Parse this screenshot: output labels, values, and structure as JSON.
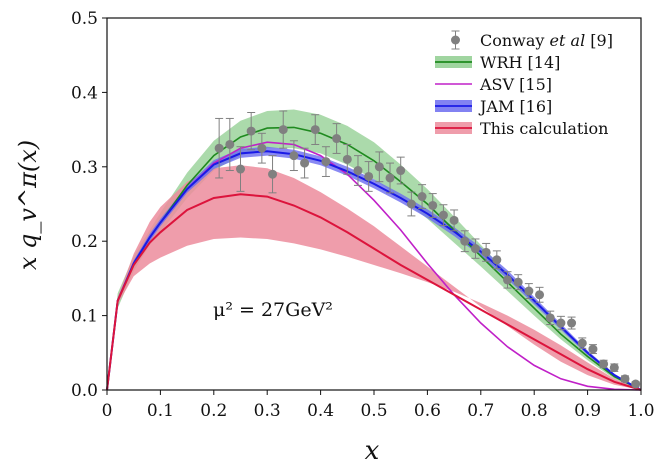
{
  "chart_data": {
    "type": "line",
    "xlabel": "x",
    "ylabel": "x q_v^π(x)",
    "xlim": [
      0,
      1.0
    ],
    "ylim": [
      0,
      0.5
    ],
    "x_ticks": [
      "0",
      "0.1",
      "0.2",
      "0.3",
      "0.4",
      "0.5",
      "0.6",
      "0.7",
      "0.8",
      "0.9",
      "1.0"
    ],
    "y_ticks": [
      "0.0",
      "0.1",
      "0.2",
      "0.3",
      "0.4",
      "0.5"
    ],
    "x_tick_values": [
      0,
      0.1,
      0.2,
      0.3,
      0.4,
      0.5,
      0.6,
      0.7,
      0.8,
      0.9,
      1.0
    ],
    "y_tick_values": [
      0,
      0.1,
      0.2,
      0.3,
      0.4,
      0.5
    ],
    "annotation": "μ² = 27GeV²",
    "legend_position": "top-right",
    "colors": {
      "data": "#808080",
      "wrh": "#1f8a1f",
      "wrh_band": "#8fce8f",
      "asv": "#c020c8",
      "jam": "#1a1ae6",
      "jam_band": "#6c6cf0",
      "calc": "#dc143c",
      "calc_band": "#ec8c9c"
    },
    "legend": [
      {
        "key": "data",
        "label": "Conway ",
        "label_italic": "et al",
        "label_tail": " [9]"
      },
      {
        "key": "wrh",
        "label": "WRH [14]"
      },
      {
        "key": "asv",
        "label": "ASV [15]"
      },
      {
        "key": "jam",
        "label": "JAM [16]"
      },
      {
        "key": "calc",
        "label": "This calculation"
      }
    ],
    "data_points": [
      {
        "x": 0.21,
        "y": 0.325,
        "err": 0.04
      },
      {
        "x": 0.23,
        "y": 0.33,
        "err": 0.035
      },
      {
        "x": 0.25,
        "y": 0.297,
        "err": 0.03
      },
      {
        "x": 0.27,
        "y": 0.348,
        "err": 0.025
      },
      {
        "x": 0.29,
        "y": 0.325,
        "err": 0.02
      },
      {
        "x": 0.31,
        "y": 0.29,
        "err": 0.025
      },
      {
        "x": 0.33,
        "y": 0.35,
        "err": 0.025
      },
      {
        "x": 0.35,
        "y": 0.315,
        "err": 0.02
      },
      {
        "x": 0.37,
        "y": 0.305,
        "err": 0.02
      },
      {
        "x": 0.39,
        "y": 0.35,
        "err": 0.02
      },
      {
        "x": 0.41,
        "y": 0.307,
        "err": 0.02
      },
      {
        "x": 0.43,
        "y": 0.338,
        "err": 0.02
      },
      {
        "x": 0.45,
        "y": 0.31,
        "err": 0.02
      },
      {
        "x": 0.47,
        "y": 0.295,
        "err": 0.02
      },
      {
        "x": 0.49,
        "y": 0.287,
        "err": 0.02
      },
      {
        "x": 0.51,
        "y": 0.3,
        "err": 0.02
      },
      {
        "x": 0.53,
        "y": 0.285,
        "err": 0.02
      },
      {
        "x": 0.55,
        "y": 0.295,
        "err": 0.018
      },
      {
        "x": 0.57,
        "y": 0.25,
        "err": 0.016
      },
      {
        "x": 0.59,
        "y": 0.26,
        "err": 0.016
      },
      {
        "x": 0.61,
        "y": 0.248,
        "err": 0.016
      },
      {
        "x": 0.63,
        "y": 0.235,
        "err": 0.014
      },
      {
        "x": 0.65,
        "y": 0.228,
        "err": 0.014
      },
      {
        "x": 0.67,
        "y": 0.2,
        "err": 0.014
      },
      {
        "x": 0.69,
        "y": 0.19,
        "err": 0.013
      },
      {
        "x": 0.71,
        "y": 0.185,
        "err": 0.012
      },
      {
        "x": 0.73,
        "y": 0.175,
        "err": 0.012
      },
      {
        "x": 0.75,
        "y": 0.148,
        "err": 0.011
      },
      {
        "x": 0.77,
        "y": 0.145,
        "err": 0.01
      },
      {
        "x": 0.79,
        "y": 0.133,
        "err": 0.01
      },
      {
        "x": 0.81,
        "y": 0.128,
        "err": 0.01
      },
      {
        "x": 0.83,
        "y": 0.097,
        "err": 0.009
      },
      {
        "x": 0.85,
        "y": 0.09,
        "err": 0.009
      },
      {
        "x": 0.87,
        "y": 0.09,
        "err": 0.008
      },
      {
        "x": 0.89,
        "y": 0.063,
        "err": 0.007
      },
      {
        "x": 0.91,
        "y": 0.055,
        "err": 0.006
      },
      {
        "x": 0.93,
        "y": 0.035,
        "err": 0.005
      },
      {
        "x": 0.95,
        "y": 0.03,
        "err": 0.005
      },
      {
        "x": 0.97,
        "y": 0.015,
        "err": 0.004
      },
      {
        "x": 0.99,
        "y": 0.008,
        "err": 0.003
      }
    ],
    "curves": {
      "x": [
        0,
        0.02,
        0.05,
        0.08,
        0.1,
        0.15,
        0.2,
        0.25,
        0.3,
        0.35,
        0.4,
        0.45,
        0.5,
        0.55,
        0.6,
        0.65,
        0.7,
        0.75,
        0.8,
        0.85,
        0.9,
        0.95,
        1.0
      ],
      "wrh_center": [
        0,
        0.12,
        0.17,
        0.205,
        0.225,
        0.275,
        0.315,
        0.34,
        0.352,
        0.353,
        0.345,
        0.33,
        0.308,
        0.28,
        0.25,
        0.215,
        0.18,
        0.145,
        0.11,
        0.075,
        0.045,
        0.018,
        0
      ],
      "wrh_lo": [
        0,
        0.11,
        0.16,
        0.195,
        0.212,
        0.258,
        0.295,
        0.315,
        0.325,
        0.325,
        0.318,
        0.303,
        0.283,
        0.258,
        0.23,
        0.198,
        0.166,
        0.133,
        0.1,
        0.068,
        0.04,
        0.015,
        0
      ],
      "wrh_hi": [
        0,
        0.13,
        0.18,
        0.215,
        0.238,
        0.292,
        0.335,
        0.362,
        0.375,
        0.377,
        0.37,
        0.355,
        0.333,
        0.303,
        0.27,
        0.233,
        0.195,
        0.157,
        0.12,
        0.083,
        0.05,
        0.021,
        0
      ],
      "asv": [
        0,
        0.12,
        0.17,
        0.205,
        0.225,
        0.27,
        0.305,
        0.325,
        0.333,
        0.33,
        0.315,
        0.29,
        0.255,
        0.215,
        0.17,
        0.128,
        0.09,
        0.058,
        0.033,
        0.015,
        0.005,
        0.001,
        0
      ],
      "jam_center": [
        0,
        0.12,
        0.17,
        0.205,
        0.225,
        0.27,
        0.303,
        0.318,
        0.321,
        0.317,
        0.308,
        0.294,
        0.277,
        0.258,
        0.237,
        0.213,
        0.186,
        0.155,
        0.12,
        0.085,
        0.05,
        0.02,
        0
      ],
      "jam_lo": [
        0,
        0.117,
        0.166,
        0.2,
        0.22,
        0.265,
        0.297,
        0.312,
        0.315,
        0.311,
        0.302,
        0.288,
        0.271,
        0.252,
        0.231,
        0.207,
        0.18,
        0.149,
        0.115,
        0.081,
        0.047,
        0.018,
        0
      ],
      "jam_hi": [
        0,
        0.123,
        0.174,
        0.21,
        0.23,
        0.275,
        0.309,
        0.324,
        0.327,
        0.323,
        0.314,
        0.3,
        0.283,
        0.264,
        0.243,
        0.219,
        0.192,
        0.161,
        0.125,
        0.089,
        0.053,
        0.022,
        0
      ],
      "calc_center": [
        0,
        0.12,
        0.168,
        0.198,
        0.212,
        0.242,
        0.258,
        0.263,
        0.26,
        0.248,
        0.232,
        0.212,
        0.19,
        0.168,
        0.148,
        0.128,
        0.108,
        0.088,
        0.068,
        0.048,
        0.028,
        0.011,
        0
      ],
      "calc_lo": [
        0,
        0.115,
        0.153,
        0.17,
        0.178,
        0.194,
        0.203,
        0.205,
        0.203,
        0.197,
        0.189,
        0.179,
        0.168,
        0.157,
        0.145,
        0.132,
        0.117,
        0.1,
        0.081,
        0.06,
        0.037,
        0.015,
        0
      ],
      "calc_hi": [
        0,
        0.125,
        0.183,
        0.226,
        0.246,
        0.28,
        0.298,
        0.302,
        0.298,
        0.285,
        0.266,
        0.244,
        0.22,
        0.193,
        0.166,
        0.139,
        0.112,
        0.086,
        0.061,
        0.038,
        0.02,
        0.007,
        0
      ]
    }
  }
}
